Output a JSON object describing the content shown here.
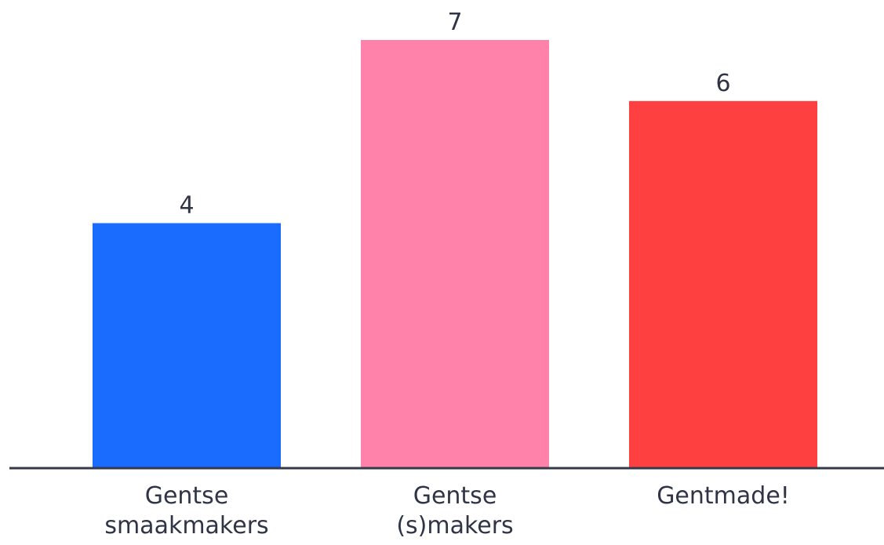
{
  "chart_data": {
    "type": "bar",
    "categories": [
      [
        "Gentse",
        "smaakmakers"
      ],
      [
        "Gentse",
        "(s)makers"
      ],
      [
        "Gentmade!"
      ]
    ],
    "values": [
      4,
      7,
      6
    ],
    "colors": [
      "#1a6bff",
      "#ff82ab",
      "#ff4040"
    ],
    "axis_color": "#343a4a",
    "title": "",
    "xlabel": "",
    "ylabel": "",
    "ylim": [
      0,
      7
    ],
    "grid": false,
    "legend": "none"
  }
}
